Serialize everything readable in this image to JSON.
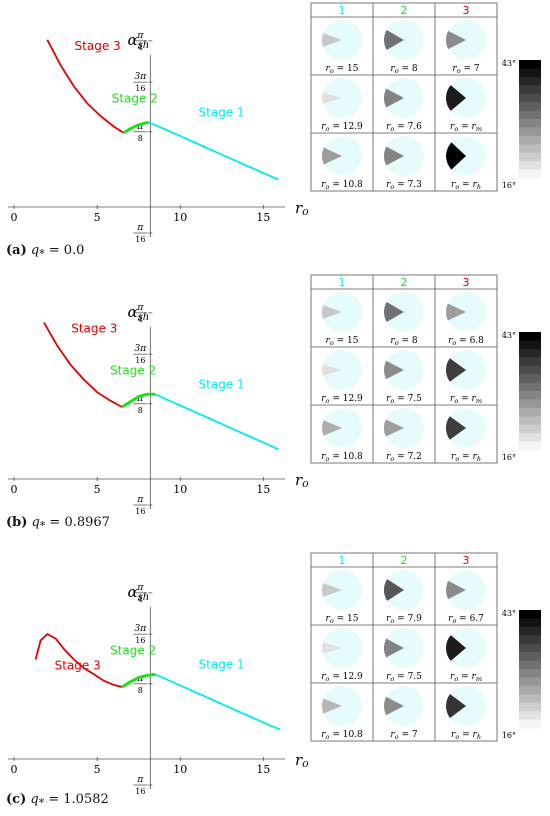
{
  "colors": {
    "stage1": "#00ecec",
    "stage2": "#1ee01e",
    "stage3": "#e00000",
    "disc": "#e6fcfc",
    "grid": "#7a7a7a",
    "axis": "#555555"
  },
  "panels": [
    {
      "caption_letter": "(a)",
      "caption_math": "q",
      "caption_sub": "*",
      "caption_value": " = 0.0",
      "chart_data": {
        "type": "line",
        "xlabel": "r_o",
        "ylabel": "α_sh",
        "xticks": [
          "0",
          "5",
          "10",
          "15"
        ],
        "yticks": [
          "π/16",
          "π/8",
          "3π/16",
          "π/4"
        ],
        "xlim": [
          0,
          16.3
        ],
        "ylim": [
          0,
          0.86
        ],
        "stage_labels": [
          "Stage 1",
          "Stage 2",
          "Stage 3"
        ],
        "series": [
          {
            "name": "Stage 3",
            "x": [
              2.0,
              2.8,
              3.6,
              4.4,
              5.2,
              6.0,
              6.6
            ],
            "y": [
              0.79,
              0.67,
              0.57,
              0.49,
              0.43,
              0.38,
              0.35
            ]
          },
          {
            "name": "Stage 2",
            "x": [
              6.6,
              7.0,
              7.4,
              7.8,
              8.1
            ],
            "y": [
              0.35,
              0.37,
              0.385,
              0.395,
              0.4
            ]
          },
          {
            "name": "Stage 1",
            "x": [
              8.1,
              9.0,
              10.0,
              11.0,
              12.0,
              13.0,
              14.0,
              15.0,
              15.9
            ],
            "y": [
              0.4,
              0.37,
              0.335,
              0.3,
              0.265,
              0.23,
              0.195,
              0.16,
              0.13
            ]
          }
        ],
        "grid": {
          "column_headers": [
            "1",
            "2",
            "3"
          ],
          "cells": [
            [
              "r_o = 15",
              "r_o = 8",
              "r_o = 7"
            ],
            [
              "r_o = 12.9",
              "r_o = 7.6",
              "r_o = r_m"
            ],
            [
              "r_o = 10.8",
              "r_o = 7.3",
              "r_o = r_h"
            ]
          ],
          "wedge_angles_deg": [
            [
              20,
              30,
              27
            ],
            [
              17,
              28,
              40
            ],
            [
              25,
              28,
              43
            ]
          ]
        },
        "colorbar": {
          "max_label": "43°",
          "min_label": "16°",
          "min": 16,
          "max": 43
        }
      }
    },
    {
      "caption_letter": "(b)",
      "caption_math": "q",
      "caption_sub": "*",
      "caption_value": " = 0.8967",
      "chart_data": {
        "type": "line",
        "xlabel": "r_o",
        "ylabel": "α_sh",
        "xticks": [
          "0",
          "5",
          "10",
          "15"
        ],
        "yticks": [
          "π/16",
          "π/8",
          "3π/16",
          "π/4"
        ],
        "xlim": [
          0,
          16.3
        ],
        "ylim": [
          0,
          0.86
        ],
        "stage_labels": [
          "Stage 1",
          "Stage 2",
          "Stage 3"
        ],
        "series": [
          {
            "name": "Stage 3",
            "x": [
              1.8,
              2.6,
              3.4,
              4.2,
              5.0,
              5.8,
              6.5
            ],
            "y": [
              0.74,
              0.63,
              0.54,
              0.47,
              0.41,
              0.37,
              0.34
            ]
          },
          {
            "name": "Stage 2",
            "x": [
              6.5,
              7.0,
              7.5,
              8.0,
              8.5
            ],
            "y": [
              0.34,
              0.365,
              0.39,
              0.4,
              0.4
            ]
          },
          {
            "name": "Stage 1",
            "x": [
              8.5,
              9.5,
              10.5,
              11.5,
              12.5,
              13.5,
              14.5,
              15.5,
              15.9
            ],
            "y": [
              0.4,
              0.365,
              0.33,
              0.295,
              0.26,
              0.225,
              0.19,
              0.155,
              0.14
            ]
          }
        ],
        "grid": {
          "column_headers": [
            "1",
            "2",
            "3"
          ],
          "cells": [
            [
              "r_o = 15",
              "r_o = 8",
              "r_o = 6.8"
            ],
            [
              "r_o = 12.9",
              "r_o = 7.5",
              "r_o = r_m"
            ],
            [
              "r_o = 10.8",
              "r_o = 7.2",
              "r_o = r_h"
            ]
          ],
          "wedge_angles_deg": [
            [
              20,
              30,
              25
            ],
            [
              17,
              27,
              36
            ],
            [
              23,
              25,
              36
            ]
          ]
        },
        "colorbar": {
          "max_label": "43°",
          "min_label": "16°",
          "min": 16,
          "max": 43
        }
      }
    },
    {
      "caption_letter": "(c)",
      "caption_math": "q",
      "caption_sub": "*",
      "caption_value": " = 1.0582",
      "chart_data": {
        "type": "line",
        "xlabel": "r_o",
        "ylabel": "α_sh",
        "xticks": [
          "0",
          "5",
          "10",
          "15"
        ],
        "yticks": [
          "π/16",
          "π/8",
          "3π/16",
          "π/4"
        ],
        "xlim": [
          0,
          16.3
        ],
        "ylim": [
          0,
          0.86
        ],
        "stage_labels": [
          "Stage 1",
          "Stage 2",
          "Stage 3"
        ],
        "series": [
          {
            "name": "Stage 3",
            "x": [
              1.3,
              1.6,
              2.0,
              2.5,
              3.0,
              3.6,
              4.2,
              4.8,
              5.4,
              6.0,
              6.5
            ],
            "y": [
              0.47,
              0.56,
              0.59,
              0.57,
              0.52,
              0.47,
              0.43,
              0.4,
              0.37,
              0.35,
              0.34
            ]
          },
          {
            "name": "Stage 2",
            "x": [
              6.5,
              7.0,
              7.5,
              8.0,
              8.5
            ],
            "y": [
              0.34,
              0.365,
              0.385,
              0.395,
              0.4
            ]
          },
          {
            "name": "Stage 1",
            "x": [
              8.5,
              9.5,
              10.5,
              11.5,
              12.5,
              13.5,
              14.5,
              15.5,
              16.0
            ],
            "y": [
              0.4,
              0.365,
              0.33,
              0.295,
              0.26,
              0.225,
              0.19,
              0.155,
              0.14
            ]
          }
        ],
        "grid": {
          "column_headers": [
            "1",
            "2",
            "3"
          ],
          "cells": [
            [
              "r_o = 15",
              "r_o = 7.9",
              "r_o = 6.7"
            ],
            [
              "r_o = 12.9",
              "r_o = 7.5",
              "r_o = r_m"
            ],
            [
              "r_o = 10.8",
              "r_o = 7",
              "r_o = r_h"
            ]
          ],
          "wedge_angles_deg": [
            [
              20,
              33,
              27
            ],
            [
              17,
              28,
              40
            ],
            [
              22,
              27,
              37
            ]
          ]
        },
        "colorbar": {
          "max_label": "43°",
          "min_label": "16°",
          "min": 16,
          "max": 43
        }
      }
    }
  ]
}
